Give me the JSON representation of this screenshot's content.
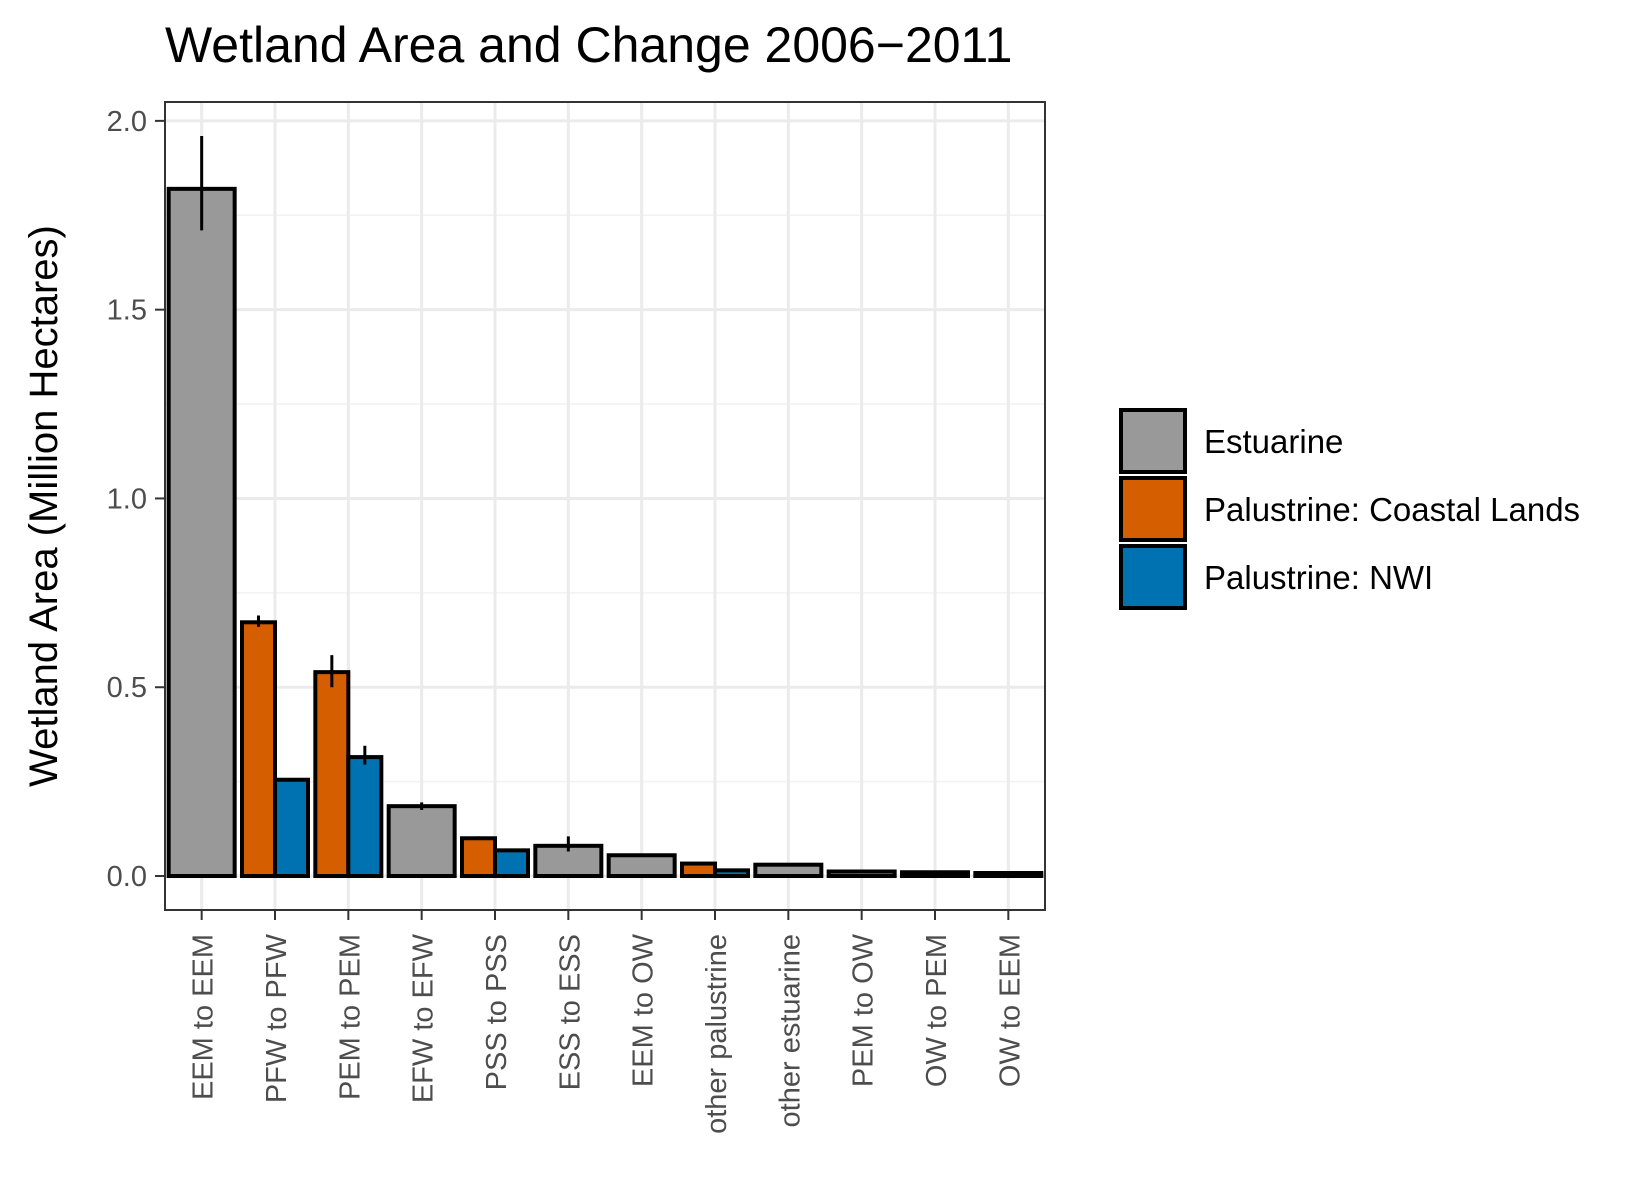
{
  "chart_data": {
    "type": "bar",
    "title": "Wetland Area and Change 2006−2011",
    "xlabel": "",
    "ylabel": "Wetland Area (Million Hectares)",
    "ylim": [
      -0.09,
      2.05
    ],
    "yticks": [
      "0.0",
      "0.5",
      "1.0",
      "1.5",
      "2.0"
    ],
    "grid": true,
    "legend_position": "right",
    "categories": [
      "EEM to EEM",
      "PFW to PFW",
      "PEM to PEM",
      "EFW to EFW",
      "PSS to PSS",
      "ESS to ESS",
      "EEM to OW",
      "other palustrine",
      "other estuarine",
      "PEM to OW",
      "OW to PEM",
      "OW to EEM"
    ],
    "series": [
      {
        "name": "Estuarine",
        "color": "#999999",
        "values": [
          1.82,
          null,
          null,
          0.185,
          null,
          0.08,
          0.055,
          null,
          0.03,
          0.012,
          0.01,
          0.008
        ],
        "error_low": [
          1.71,
          null,
          null,
          0.175,
          null,
          0.065,
          null,
          null,
          null,
          null,
          null,
          null
        ],
        "error_high": [
          1.96,
          null,
          null,
          0.195,
          null,
          0.105,
          null,
          null,
          null,
          null,
          null,
          null
        ]
      },
      {
        "name": "Palustrine: Coastal Lands",
        "color": "#D55E00",
        "values": [
          null,
          0.672,
          0.54,
          null,
          0.1,
          null,
          null,
          0.033,
          null,
          null,
          null,
          null
        ],
        "error_low": [
          null,
          0.66,
          0.5,
          null,
          0.1,
          null,
          null,
          null,
          null,
          null,
          null,
          null
        ],
        "error_high": [
          null,
          0.69,
          0.585,
          null,
          0.105,
          null,
          null,
          null,
          null,
          null,
          null,
          null
        ]
      },
      {
        "name": "Palustrine: NWI",
        "color": "#0072B2",
        "values": [
          null,
          0.255,
          0.315,
          null,
          0.068,
          null,
          null,
          0.015,
          null,
          null,
          null,
          null
        ],
        "error_low": [
          null,
          null,
          0.295,
          null,
          null,
          null,
          null,
          null,
          null,
          null,
          null,
          null
        ],
        "error_high": [
          null,
          null,
          0.345,
          null,
          null,
          null,
          null,
          null,
          null,
          null,
          null,
          null
        ]
      }
    ]
  }
}
